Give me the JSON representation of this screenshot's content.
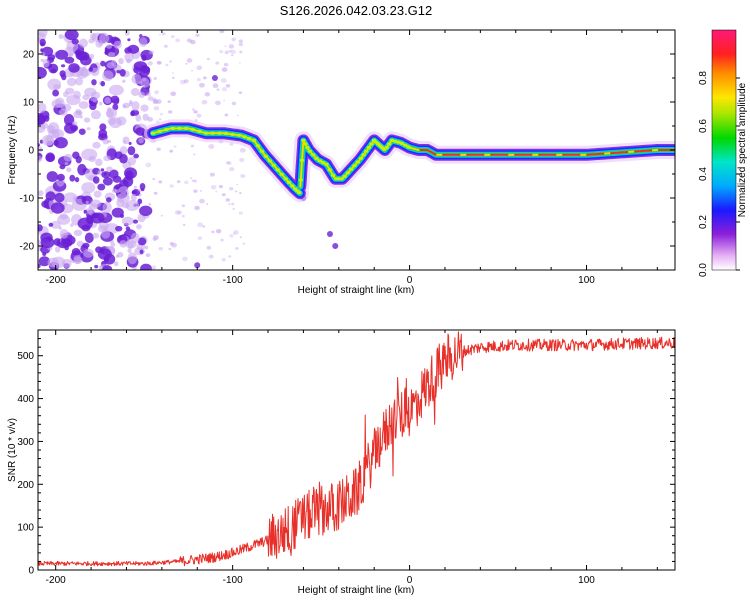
{
  "title": "S126.2026.042.03.23.G12",
  "colors": {
    "snr_line": "#e8302a",
    "ridge_core": "#e8302a",
    "noise_dark": "#6a1fd6",
    "noise_light": "#c9a8f0"
  },
  "chart_data": [
    {
      "type": "heatmap",
      "name": "spectrogram",
      "xlabel": "Height of straight line (km)",
      "ylabel": "Frequency (Hz)",
      "xlim": [
        -210,
        150
      ],
      "ylim": [
        -25,
        25
      ],
      "xticks": [
        -200,
        -100,
        0,
        100
      ],
      "xtick_labels": [
        "-200",
        "-100",
        "0",
        "100"
      ],
      "yticks": [
        -20,
        -10,
        0,
        10,
        20
      ],
      "ytick_labels": [
        "-20",
        "-10",
        "0",
        "10",
        "20"
      ],
      "ridge": {
        "x": [
          -145,
          -135,
          -125,
          -115,
          -105,
          -95,
          -88,
          -82,
          -76,
          -70,
          -65,
          -62,
          -60,
          -57,
          -52,
          -47,
          -42,
          -38,
          -33,
          -28,
          -24,
          -20,
          -17,
          -14,
          -10,
          -5,
          0,
          5,
          10,
          15,
          25,
          40,
          60,
          80,
          100,
          120,
          140,
          150
        ],
        "y": [
          3.5,
          4.5,
          4.5,
          3.5,
          3.5,
          3.0,
          2.0,
          -1.0,
          -3.5,
          -6.0,
          -8.0,
          -9.0,
          2.0,
          0.0,
          -2.0,
          -3.0,
          -6.0,
          -6.0,
          -4.0,
          -2.0,
          0.0,
          2.0,
          1.0,
          0.0,
          2.0,
          1.5,
          0.5,
          0.0,
          0.0,
          -1.0,
          -1.0,
          -1.0,
          -1.0,
          -1.0,
          -1.0,
          -0.5,
          0.0,
          0.0
        ]
      },
      "colorbar": {
        "label": "Normalized spectral amplitude",
        "range": [
          0,
          1
        ],
        "ticks": [
          0.0,
          0.2,
          0.4,
          0.6,
          0.8
        ],
        "tick_labels": [
          "0.0",
          "0.2",
          "0.4",
          "0.6",
          "0.8"
        ]
      }
    },
    {
      "type": "line",
      "name": "snr",
      "xlabel": "Height of straight line (km)",
      "ylabel": "SNR (10 * v/v)",
      "xlim": [
        -210,
        150
      ],
      "ylim": [
        0,
        560
      ],
      "xticks": [
        -200,
        -100,
        0,
        100
      ],
      "xtick_labels": [
        "-200",
        "-100",
        "0",
        "100"
      ],
      "yticks": [
        0,
        100,
        200,
        300,
        400,
        500
      ],
      "ytick_labels": [
        "0",
        "100",
        "200",
        "300",
        "400",
        "500"
      ],
      "series": [
        {
          "name": "SNR",
          "x": [
            -210,
            -180,
            -150,
            -130,
            -110,
            -100,
            -90,
            -80,
            -70,
            -60,
            -50,
            -40,
            -30,
            -20,
            -10,
            0,
            10,
            20,
            30,
            40,
            60,
            80,
            100,
            120,
            150
          ],
          "y": [
            15,
            15,
            15,
            20,
            30,
            40,
            55,
            70,
            90,
            120,
            140,
            150,
            180,
            270,
            350,
            370,
            430,
            490,
            510,
            520,
            525,
            525,
            525,
            528,
            530
          ]
        }
      ]
    }
  ]
}
